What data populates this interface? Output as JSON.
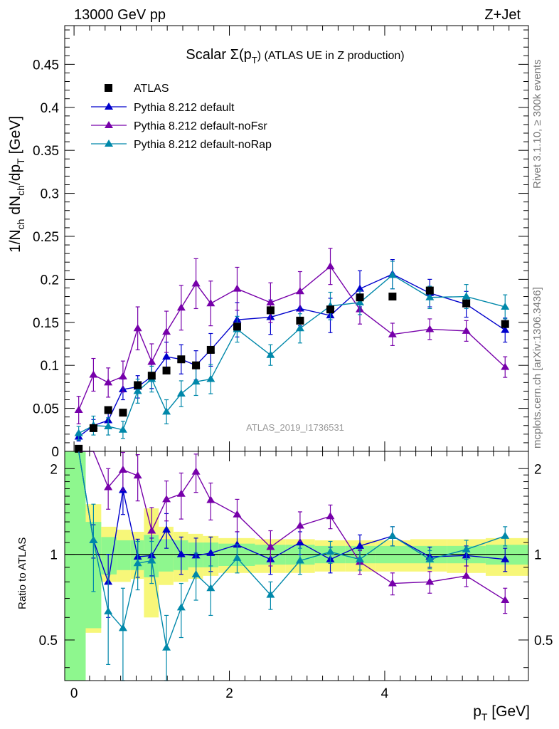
{
  "header": {
    "energy_label": "13000 GeV pp",
    "process_label": "Z+Jet"
  },
  "side_text": {
    "rivet": "Rivet 3.1.10, ≥ 300k events",
    "mcplots": "mcplots.cern.ch [arXiv:1306.3436]"
  },
  "chart_data": {
    "type": "scatter",
    "title": "Scalar Σ(pT) (ATLAS UE in Z production)",
    "title_main": "Scalar Σ(p",
    "title_sub": "T",
    "title_rest": ") (ATLAS UE in Z production)",
    "watermark": "ATLAS_2019_I1736531",
    "xlabel": "p",
    "xlabel_sub": "T",
    "xlabel_unit": " [GeV]",
    "ylabel_main": "1/N",
    "ylabel_sub1": "ch",
    "ylabel_mid": " dN",
    "ylabel_sub2": "ch",
    "ylabel_mid2": "/dp",
    "ylabel_sub3": "T",
    "ylabel_unit": " [GeV]",
    "ratio_ylabel": "Ratio to ATLAS",
    "xlim": [
      -0.12,
      5.85
    ],
    "ylim": [
      0,
      0.495
    ],
    "ratio_ylim": [
      0.36,
      2.3
    ],
    "x_ticks": [
      "0",
      "2",
      "4"
    ],
    "y_ticks": [
      "0",
      "0.05",
      "0.1",
      "0.15",
      "0.2",
      "0.25",
      "0.3",
      "0.35",
      "0.4",
      "0.45"
    ],
    "ratio_ticks": [
      "0.5",
      "1",
      "2"
    ],
    "x": [
      0.06,
      0.25,
      0.44,
      0.63,
      0.82,
      1.0,
      1.19,
      1.38,
      1.57,
      1.76,
      2.1,
      2.53,
      2.91,
      3.3,
      3.68,
      4.1,
      4.58,
      5.05,
      5.55
    ],
    "data": {
      "name": "ATLAS",
      "color": "#000000",
      "values": [
        0.003,
        0.027,
        0.048,
        0.045,
        0.077,
        0.088,
        0.094,
        0.107,
        0.1,
        0.118,
        0.145,
        0.164,
        0.152,
        0.165,
        0.179,
        0.18,
        0.187,
        0.172,
        0.148
      ]
    },
    "series": [
      {
        "name": "Pythia 8.212 default",
        "color": "#0000cc",
        "values": [
          0.017,
          0.03,
          0.036,
          0.072,
          0.075,
          0.087,
          0.11,
          0.107,
          0.1,
          0.118,
          0.153,
          0.156,
          0.166,
          0.158,
          0.189,
          0.206,
          0.184,
          0.171,
          0.141
        ],
        "errors": [
          0.005,
          0.007,
          0.009,
          0.012,
          0.013,
          0.014,
          0.017,
          0.017,
          0.017,
          0.019,
          0.02,
          0.02,
          0.02,
          0.02,
          0.021,
          0.017,
          0.016,
          0.015,
          0.014
        ],
        "ratio": [
          5.5,
          1.12,
          0.8,
          1.68,
          0.98,
          0.99,
          1.22,
          1.0,
          0.99,
          1.01,
          1.08,
          0.96,
          1.1,
          0.96,
          1.07,
          1.16,
          0.98,
          0.99,
          0.96
        ],
        "ratio_errors": [
          0.0,
          0.15,
          0.2,
          0.3,
          0.15,
          0.15,
          0.17,
          0.15,
          0.15,
          0.14,
          0.12,
          0.11,
          0.1,
          0.1,
          0.1,
          0.09,
          0.08,
          0.08,
          0.09
        ]
      },
      {
        "name": "Pythia 8.212 default-noFsr",
        "color": "#7700aa",
        "values": [
          0.048,
          0.089,
          0.08,
          0.087,
          0.143,
          0.104,
          0.139,
          0.167,
          0.195,
          0.172,
          0.189,
          0.173,
          0.186,
          0.215,
          0.165,
          0.136,
          0.142,
          0.14,
          0.098
        ],
        "errors": [
          0.016,
          0.019,
          0.017,
          0.018,
          0.025,
          0.021,
          0.024,
          0.026,
          0.029,
          0.026,
          0.025,
          0.023,
          0.023,
          0.021,
          0.017,
          0.013,
          0.012,
          0.012,
          0.012
        ],
        "ratio": [
          16.0,
          3.3,
          1.72,
          1.98,
          1.89,
          1.21,
          1.56,
          1.63,
          1.95,
          1.55,
          1.38,
          1.06,
          1.26,
          1.36,
          0.94,
          0.79,
          0.8,
          0.84,
          0.69
        ],
        "ratio_errors": [
          0.0,
          0.5,
          0.28,
          0.3,
          0.35,
          0.25,
          0.25,
          0.3,
          0.3,
          0.23,
          0.18,
          0.15,
          0.15,
          0.13,
          0.09,
          0.07,
          0.07,
          0.07,
          0.07
        ]
      },
      {
        "name": "Pythia 8.212 default-noRap",
        "color": "#0088aa",
        "values": [
          0.021,
          0.03,
          0.029,
          0.025,
          0.07,
          0.084,
          0.046,
          0.067,
          0.081,
          0.084,
          0.142,
          0.112,
          0.143,
          0.169,
          0.173,
          0.205,
          0.179,
          0.18,
          0.168
        ],
        "errors": [
          0.008,
          0.011,
          0.01,
          0.01,
          0.014,
          0.015,
          0.014,
          0.015,
          0.016,
          0.017,
          0.015,
          0.012,
          0.017,
          0.016,
          0.014,
          0.016,
          0.013,
          0.014,
          0.014
        ],
        "ratio": [
          7.0,
          1.12,
          0.63,
          0.55,
          0.93,
          0.95,
          0.47,
          0.65,
          0.85,
          0.76,
          0.97,
          0.72,
          0.95,
          1.02,
          0.96,
          1.16,
          0.96,
          1.04,
          1.16
        ],
        "ratio_errors": [
          0.0,
          0.38,
          0.22,
          0.21,
          0.18,
          0.16,
          0.14,
          0.14,
          0.16,
          0.15,
          0.11,
          0.08,
          0.1,
          0.09,
          0.08,
          0.09,
          0.07,
          0.08,
          0.09
        ]
      }
    ],
    "bands": {
      "edges": [
        -0.12,
        0.15,
        0.35,
        0.55,
        0.73,
        0.9,
        1.09,
        1.28,
        1.47,
        1.66,
        1.86,
        2.33,
        2.72,
        3.1,
        3.49,
        3.88,
        4.33,
        4.8,
        5.3,
        5.85
      ],
      "green_lo": [
        0.3,
        0.55,
        0.85,
        0.88,
        0.88,
        0.83,
        0.87,
        0.88,
        0.9,
        0.9,
        0.91,
        0.92,
        0.92,
        0.93,
        0.93,
        0.93,
        0.93,
        0.93,
        0.92
      ],
      "green_hi": [
        2.4,
        1.3,
        1.15,
        1.12,
        1.12,
        1.17,
        1.13,
        1.12,
        1.1,
        1.1,
        1.09,
        1.08,
        1.08,
        1.07,
        1.07,
        1.07,
        1.07,
        1.07,
        1.08
      ],
      "yellow_lo": [
        0.3,
        0.53,
        0.8,
        0.8,
        0.82,
        0.6,
        0.78,
        0.8,
        0.82,
        0.84,
        0.86,
        0.86,
        0.86,
        0.87,
        0.87,
        0.87,
        0.87,
        0.86,
        0.84
      ],
      "yellow_hi": [
        2.4,
        1.5,
        1.25,
        1.22,
        1.2,
        1.45,
        1.25,
        1.2,
        1.18,
        1.16,
        1.14,
        1.13,
        1.13,
        1.12,
        1.12,
        1.12,
        1.13,
        1.13,
        1.14
      ]
    },
    "legend_position": "top-left"
  }
}
